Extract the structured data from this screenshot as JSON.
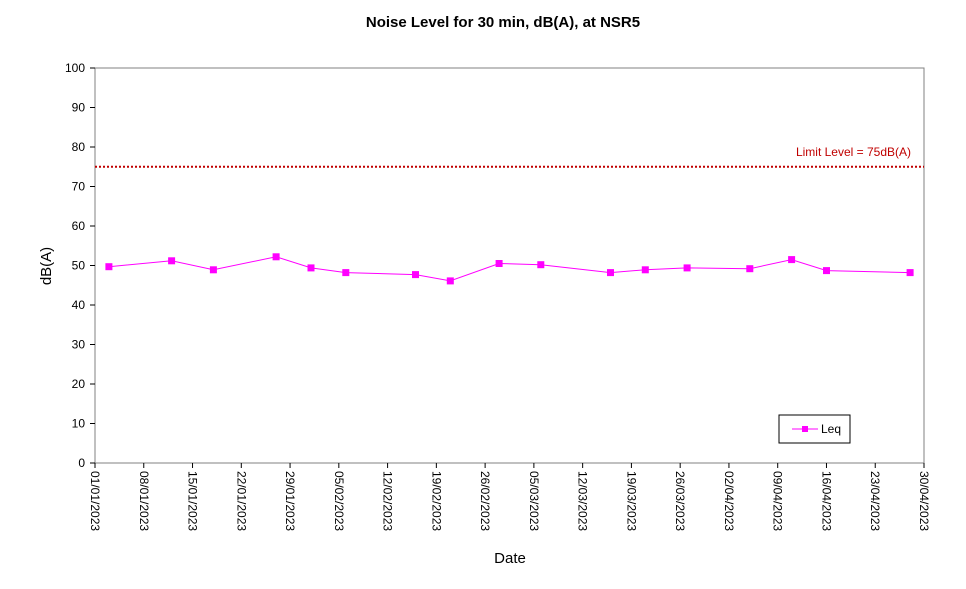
{
  "chart_data": {
    "type": "line",
    "title": "Noise Level for 30 min, dB(A), at NSR5",
    "xlabel": "Date",
    "ylabel": "dB(A)",
    "ylim": [
      0,
      100
    ],
    "y_ticks": [
      0,
      10,
      20,
      30,
      40,
      50,
      60,
      70,
      80,
      90,
      100
    ],
    "xlim": [
      "2023-01-01",
      "2023-04-30"
    ],
    "x_ticks": [
      "01/01/2023",
      "08/01/2023",
      "15/01/2023",
      "22/01/2023",
      "29/01/2023",
      "05/02/2023",
      "12/02/2023",
      "19/02/2023",
      "26/02/2023",
      "05/03/2023",
      "12/03/2023",
      "19/03/2023",
      "26/03/2023",
      "02/04/2023",
      "09/04/2023",
      "16/04/2023",
      "23/04/2023",
      "30/04/2023"
    ],
    "grid": false,
    "legend_position": "bottom-right",
    "limit_line": {
      "value": 75,
      "label": "Limit Level  = 75dB(A)",
      "color": "#c00000"
    },
    "series": [
      {
        "name": "Leq",
        "color": "#ff00ff",
        "marker": "square",
        "x": [
          "2023-01-03",
          "2023-01-12",
          "2023-01-18",
          "2023-01-27",
          "2023-02-01",
          "2023-02-06",
          "2023-02-16",
          "2023-02-21",
          "2023-02-28",
          "2023-03-06",
          "2023-03-16",
          "2023-03-21",
          "2023-03-27",
          "2023-04-05",
          "2023-04-11",
          "2023-04-16",
          "2023-04-28"
        ],
        "values": [
          49.7,
          51.2,
          48.9,
          52.2,
          49.4,
          48.2,
          47.7,
          46.1,
          50.5,
          50.2,
          48.2,
          48.9,
          49.4,
          49.2,
          51.5,
          48.7,
          48.2
        ]
      }
    ]
  }
}
